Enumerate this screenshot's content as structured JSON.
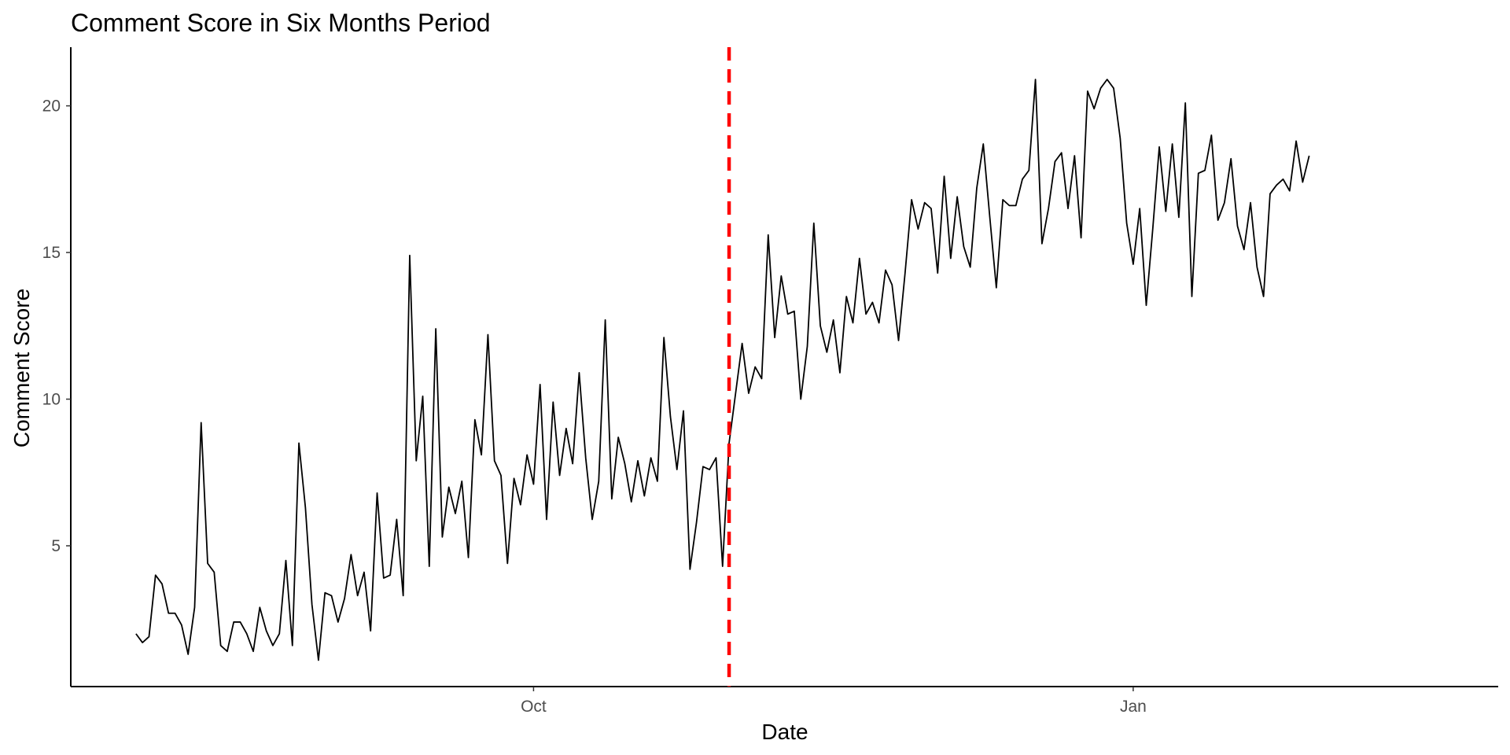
{
  "chart_data": {
    "type": "line",
    "title": "Comment Score in Six Months Period",
    "xlabel": "Date",
    "ylabel": "Comment Score",
    "x_start": "2023-08-01",
    "x_end": "2024-01-28",
    "xlim": [
      "2023-07-22",
      "2024-02-26"
    ],
    "ylim": [
      0.2,
      22
    ],
    "x_ticks": [
      {
        "date": "2023-10-01",
        "label": "Oct"
      },
      {
        "date": "2024-01-01",
        "label": "Jan"
      }
    ],
    "y_ticks": [
      5,
      10,
      15,
      20
    ],
    "grid": false,
    "series": [
      {
        "color": "#000000",
        "values": [
          2.0,
          1.7,
          1.9,
          4.0,
          3.7,
          2.7,
          2.7,
          2.3,
          1.3,
          2.9,
          9.2,
          4.4,
          4.1,
          1.6,
          1.4,
          2.4,
          2.4,
          2.0,
          1.4,
          2.9,
          2.1,
          1.6,
          2.0,
          4.5,
          1.6,
          8.5,
          6.3,
          3.0,
          1.1,
          3.4,
          3.3,
          2.4,
          3.2,
          4.7,
          3.3,
          4.1,
          2.1,
          6.8,
          3.9,
          4.0,
          5.9,
          3.3,
          14.9,
          7.9,
          10.1,
          4.3,
          12.4,
          5.3,
          7.0,
          6.1,
          7.2,
          4.6,
          9.3,
          8.1,
          12.2,
          7.9,
          7.4,
          4.4,
          7.3,
          6.4,
          8.1,
          7.1,
          10.5,
          5.9,
          9.9,
          7.4,
          9.0,
          7.8,
          10.9,
          8.0,
          5.9,
          7.2,
          12.7,
          6.6,
          8.7,
          7.8,
          6.5,
          7.9,
          6.7,
          8.0,
          7.2,
          12.1,
          9.4,
          7.6,
          9.6,
          4.2,
          5.8,
          7.7,
          7.6,
          8.0,
          4.3,
          8.5,
          10.2,
          11.9,
          10.2,
          11.1,
          10.7,
          15.6,
          12.1,
          14.2,
          12.9,
          13.0,
          10.0,
          11.8,
          16.0,
          12.5,
          11.6,
          12.7,
          10.9,
          13.5,
          12.6,
          14.8,
          12.9,
          13.3,
          12.6,
          14.4,
          13.9,
          12.0,
          14.3,
          16.8,
          15.8,
          16.7,
          16.5,
          14.3,
          17.6,
          14.8,
          16.9,
          15.2,
          14.5,
          17.2,
          18.7,
          16.2,
          13.8,
          16.8,
          16.6,
          16.6,
          17.5,
          17.8,
          20.9,
          15.3,
          16.5,
          18.1,
          18.4,
          16.5,
          18.3,
          15.5,
          20.5,
          19.9,
          20.6,
          20.9,
          20.6,
          18.9,
          16.0,
          14.6,
          16.5,
          13.2,
          15.8,
          18.6,
          16.4,
          18.7,
          16.2,
          20.1,
          13.5,
          17.7,
          17.8,
          19.0,
          16.1,
          16.7,
          18.2,
          15.9,
          15.1,
          16.7,
          14.5,
          13.5,
          17.0,
          17.3,
          17.5,
          17.1,
          18.8,
          17.4,
          18.3
        ]
      }
    ],
    "vlines": [
      {
        "date": "2023-10-31",
        "color": "#ff0000",
        "style": "dashed"
      }
    ]
  }
}
